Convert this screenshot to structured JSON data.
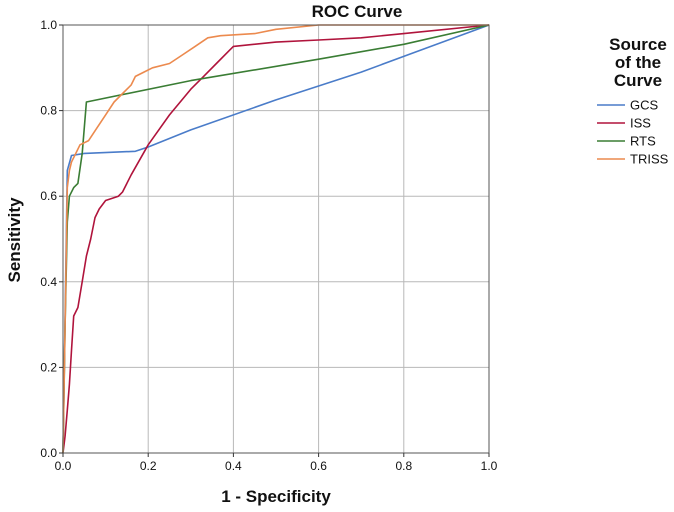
{
  "chart_data": {
    "type": "line",
    "title": "ROC Curve",
    "xlabel": "1 - Specificity",
    "ylabel": "Sensitivity",
    "xlim": [
      0,
      1
    ],
    "ylim": [
      0,
      1
    ],
    "x_ticks": [
      "0.0",
      "0.2",
      "0.4",
      "0.6",
      "0.8",
      "1.0"
    ],
    "y_ticks": [
      "0.0",
      "0.2",
      "0.4",
      "0.6",
      "0.8",
      "1.0"
    ],
    "grid": true,
    "legend_title": "Source of the Curve",
    "legend_title_lines": [
      "Source",
      "of the",
      "Curve"
    ],
    "legend_position": "right",
    "series": [
      {
        "name": "GCS",
        "color": "#4a7cc9",
        "points": [
          [
            0,
            0
          ],
          [
            0.01,
            0.66
          ],
          [
            0.02,
            0.695
          ],
          [
            0.05,
            0.7
          ],
          [
            0.17,
            0.705
          ],
          [
            0.2,
            0.715
          ],
          [
            0.3,
            0.755
          ],
          [
            0.5,
            0.825
          ],
          [
            0.7,
            0.89
          ],
          [
            0.85,
            0.945
          ],
          [
            1,
            1
          ]
        ]
      },
      {
        "name": "ISS",
        "color": "#b0143c",
        "points": [
          [
            0,
            0
          ],
          [
            0.005,
            0.04
          ],
          [
            0.01,
            0.1
          ],
          [
            0.015,
            0.16
          ],
          [
            0.02,
            0.24
          ],
          [
            0.025,
            0.32
          ],
          [
            0.035,
            0.34
          ],
          [
            0.045,
            0.4
          ],
          [
            0.055,
            0.46
          ],
          [
            0.065,
            0.5
          ],
          [
            0.075,
            0.55
          ],
          [
            0.085,
            0.57
          ],
          [
            0.1,
            0.59
          ],
          [
            0.13,
            0.6
          ],
          [
            0.14,
            0.61
          ],
          [
            0.16,
            0.65
          ],
          [
            0.2,
            0.72
          ],
          [
            0.25,
            0.79
          ],
          [
            0.3,
            0.85
          ],
          [
            0.33,
            0.88
          ],
          [
            0.36,
            0.91
          ],
          [
            0.39,
            0.94
          ],
          [
            0.4,
            0.95
          ],
          [
            0.5,
            0.96
          ],
          [
            0.6,
            0.965
          ],
          [
            0.7,
            0.97
          ],
          [
            0.8,
            0.98
          ],
          [
            1,
            1
          ]
        ]
      },
      {
        "name": "RTS",
        "color": "#3a7d34",
        "points": [
          [
            0,
            0
          ],
          [
            0.005,
            0.3
          ],
          [
            0.01,
            0.54
          ],
          [
            0.015,
            0.6
          ],
          [
            0.025,
            0.62
          ],
          [
            0.035,
            0.63
          ],
          [
            0.045,
            0.7
          ],
          [
            0.055,
            0.82
          ],
          [
            0.3,
            0.87
          ],
          [
            0.6,
            0.92
          ],
          [
            0.8,
            0.955
          ],
          [
            1,
            1
          ]
        ]
      },
      {
        "name": "TRISS",
        "color": "#ec8a4e",
        "points": [
          [
            0,
            0
          ],
          [
            0.005,
            0.3
          ],
          [
            0.01,
            0.62
          ],
          [
            0.015,
            0.66
          ],
          [
            0.02,
            0.68
          ],
          [
            0.03,
            0.7
          ],
          [
            0.04,
            0.72
          ],
          [
            0.06,
            0.73
          ],
          [
            0.08,
            0.76
          ],
          [
            0.1,
            0.79
          ],
          [
            0.12,
            0.82
          ],
          [
            0.14,
            0.84
          ],
          [
            0.16,
            0.86
          ],
          [
            0.17,
            0.88
          ],
          [
            0.19,
            0.89
          ],
          [
            0.21,
            0.9
          ],
          [
            0.25,
            0.91
          ],
          [
            0.28,
            0.93
          ],
          [
            0.31,
            0.95
          ],
          [
            0.34,
            0.97
          ],
          [
            0.37,
            0.975
          ],
          [
            0.45,
            0.98
          ],
          [
            0.5,
            0.99
          ],
          [
            0.6,
            1.0
          ],
          [
            0.7,
            1.0
          ],
          [
            1,
            1
          ]
        ]
      }
    ]
  }
}
